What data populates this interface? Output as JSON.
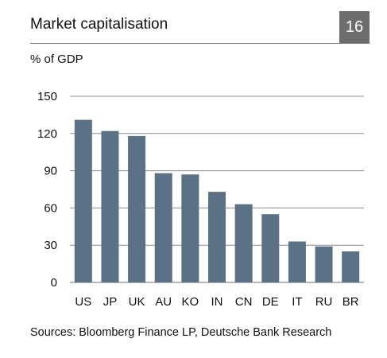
{
  "header": {
    "title": "Market capitalisation",
    "number": "16"
  },
  "unit_label": "% of GDP",
  "source": "Sources: Bloomberg Finance LP, Deutsche Bank Research",
  "colors": {
    "bar": "#5b7186",
    "grid": "#8c8c8c",
    "badge": "#6d6d6d"
  },
  "chart_data": {
    "type": "bar",
    "title": "Market capitalisation",
    "xlabel": "",
    "ylabel": "% of GDP",
    "ylim": [
      0,
      150
    ],
    "yticks": [
      0,
      30,
      60,
      90,
      120,
      150
    ],
    "grid": true,
    "categories": [
      "US",
      "JP",
      "UK",
      "AU",
      "KO",
      "IN",
      "CN",
      "DE",
      "IT",
      "RU",
      "BR"
    ],
    "values": [
      131,
      122,
      118,
      88,
      87,
      73,
      63,
      55,
      33,
      29,
      25
    ]
  }
}
